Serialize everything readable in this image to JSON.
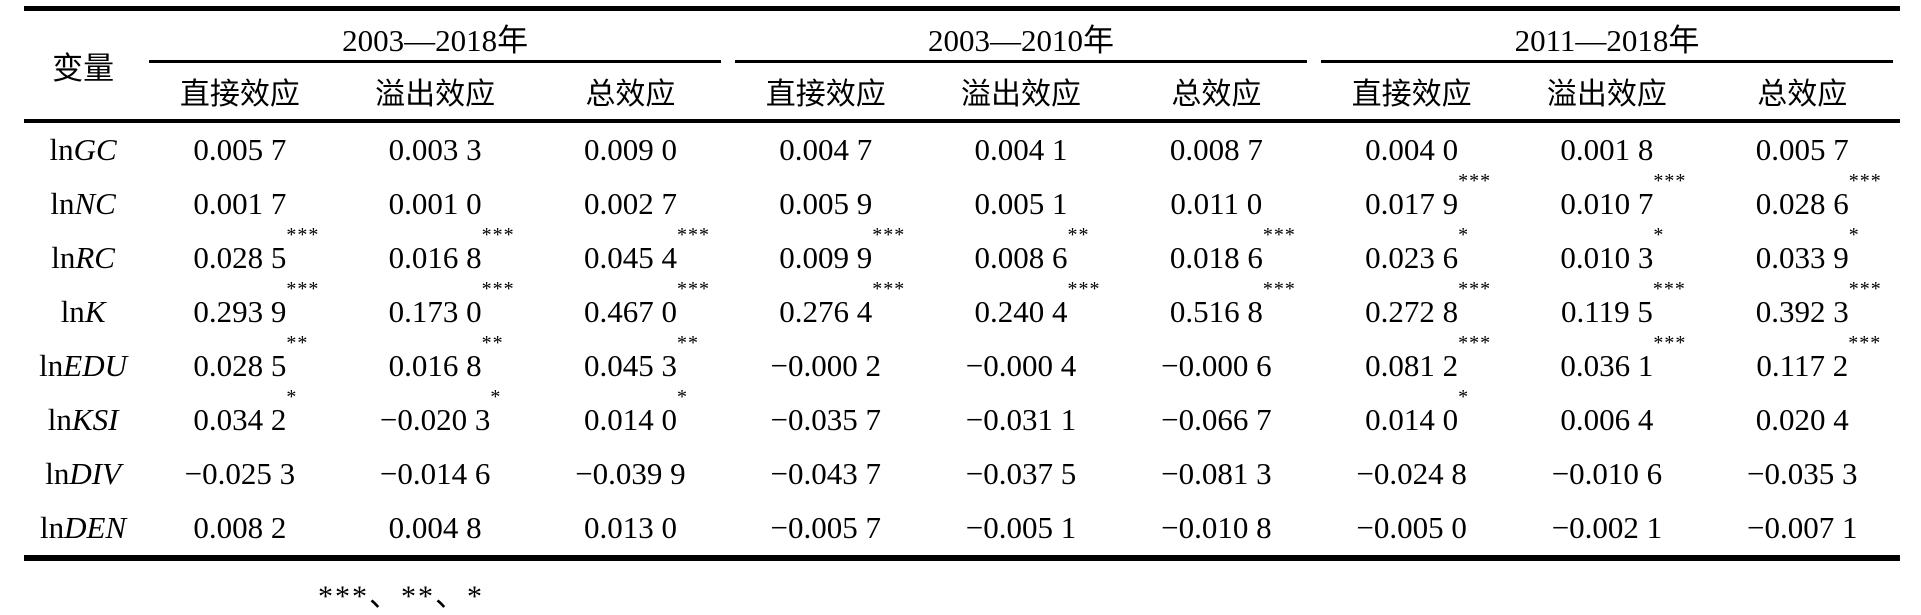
{
  "table": {
    "corner_label": "变量",
    "groups": [
      {
        "label": "2003—2018年"
      },
      {
        "label": "2003—2010年"
      },
      {
        "label": "2011—2018年"
      }
    ],
    "effect_labels": [
      "直接效应",
      "溢出效应",
      "总效应"
    ],
    "rows": [
      {
        "var_prefix": "ln",
        "var_name": "GC",
        "cells": [
          {
            "v": "0.005 7",
            "stars": ""
          },
          {
            "v": "0.003 3",
            "stars": ""
          },
          {
            "v": "0.009 0",
            "stars": ""
          },
          {
            "v": "0.004 7",
            "stars": ""
          },
          {
            "v": "0.004 1",
            "stars": ""
          },
          {
            "v": "0.008 7",
            "stars": ""
          },
          {
            "v": "0.004 0",
            "stars": ""
          },
          {
            "v": "0.001 8",
            "stars": ""
          },
          {
            "v": "0.005 7",
            "stars": ""
          }
        ]
      },
      {
        "var_prefix": "ln",
        "var_name": "NC",
        "cells": [
          {
            "v": "0.001 7",
            "stars": ""
          },
          {
            "v": "0.001 0",
            "stars": ""
          },
          {
            "v": "0.002 7",
            "stars": ""
          },
          {
            "v": "0.005 9",
            "stars": ""
          },
          {
            "v": "0.005 1",
            "stars": ""
          },
          {
            "v": "0.011 0",
            "stars": ""
          },
          {
            "v": "0.017 9",
            "stars": "***"
          },
          {
            "v": "0.010 7",
            "stars": "***"
          },
          {
            "v": "0.028 6",
            "stars": "***"
          }
        ]
      },
      {
        "var_prefix": "ln",
        "var_name": "RC",
        "cells": [
          {
            "v": "0.028 5",
            "stars": "***"
          },
          {
            "v": "0.016 8",
            "stars": "***"
          },
          {
            "v": "0.045 4",
            "stars": "***"
          },
          {
            "v": "0.009 9",
            "stars": "***"
          },
          {
            "v": "0.008 6",
            "stars": "**"
          },
          {
            "v": "0.018 6",
            "stars": "***"
          },
          {
            "v": "0.023 6",
            "stars": "*"
          },
          {
            "v": "0.010 3",
            "stars": "*"
          },
          {
            "v": "0.033 9",
            "stars": "*"
          }
        ]
      },
      {
        "var_prefix": "ln",
        "var_name": "K",
        "cells": [
          {
            "v": "0.293 9",
            "stars": "***"
          },
          {
            "v": "0.173 0",
            "stars": "***"
          },
          {
            "v": "0.467 0",
            "stars": "***"
          },
          {
            "v": "0.276 4",
            "stars": "***"
          },
          {
            "v": "0.240 4",
            "stars": "***"
          },
          {
            "v": "0.516 8",
            "stars": "***"
          },
          {
            "v": "0.272 8",
            "stars": "***"
          },
          {
            "v": "0.119 5",
            "stars": "***"
          },
          {
            "v": "0.392 3",
            "stars": "***"
          }
        ]
      },
      {
        "var_prefix": "ln",
        "var_name": "EDU",
        "cells": [
          {
            "v": "0.028 5",
            "stars": "**"
          },
          {
            "v": "0.016 8",
            "stars": "**"
          },
          {
            "v": "0.045 3",
            "stars": "**"
          },
          {
            "v": "−0.000 2",
            "stars": ""
          },
          {
            "v": "−0.000 4",
            "stars": ""
          },
          {
            "v": "−0.000 6",
            "stars": ""
          },
          {
            "v": "0.081 2",
            "stars": "***"
          },
          {
            "v": "0.036 1",
            "stars": "***"
          },
          {
            "v": "0.117 2",
            "stars": "***"
          }
        ]
      },
      {
        "var_prefix": "ln",
        "var_name": "KSI",
        "cells": [
          {
            "v": "0.034 2",
            "stars": "*"
          },
          {
            "v": "−0.020 3",
            "stars": "*"
          },
          {
            "v": "0.014 0",
            "stars": "*"
          },
          {
            "v": "−0.035 7",
            "stars": ""
          },
          {
            "v": "−0.031 1",
            "stars": ""
          },
          {
            "v": "−0.066 7",
            "stars": ""
          },
          {
            "v": "0.014 0",
            "stars": "*"
          },
          {
            "v": "0.006 4",
            "stars": ""
          },
          {
            "v": "0.020 4",
            "stars": ""
          }
        ]
      },
      {
        "var_prefix": "ln",
        "var_name": "DIV",
        "cells": [
          {
            "v": "−0.025 3",
            "stars": ""
          },
          {
            "v": "−0.014 6",
            "stars": ""
          },
          {
            "v": "−0.039 9",
            "stars": ""
          },
          {
            "v": "−0.043 7",
            "stars": ""
          },
          {
            "v": "−0.037 5",
            "stars": ""
          },
          {
            "v": "−0.081 3",
            "stars": ""
          },
          {
            "v": "−0.024 8",
            "stars": ""
          },
          {
            "v": "−0.010 6",
            "stars": ""
          },
          {
            "v": "−0.035 3",
            "stars": ""
          }
        ]
      },
      {
        "var_prefix": "ln",
        "var_name": "DEN",
        "cells": [
          {
            "v": "0.008 2",
            "stars": ""
          },
          {
            "v": "0.004 8",
            "stars": ""
          },
          {
            "v": "0.013 0",
            "stars": ""
          },
          {
            "v": "−0.005 7",
            "stars": ""
          },
          {
            "v": "−0.005 1",
            "stars": ""
          },
          {
            "v": "−0.010 8",
            "stars": ""
          },
          {
            "v": "−0.005 0",
            "stars": ""
          },
          {
            "v": "−0.002 1",
            "stars": ""
          },
          {
            "v": "−0.007 1",
            "stars": ""
          }
        ]
      }
    ],
    "footnote_visible": "***、**、*"
  }
}
